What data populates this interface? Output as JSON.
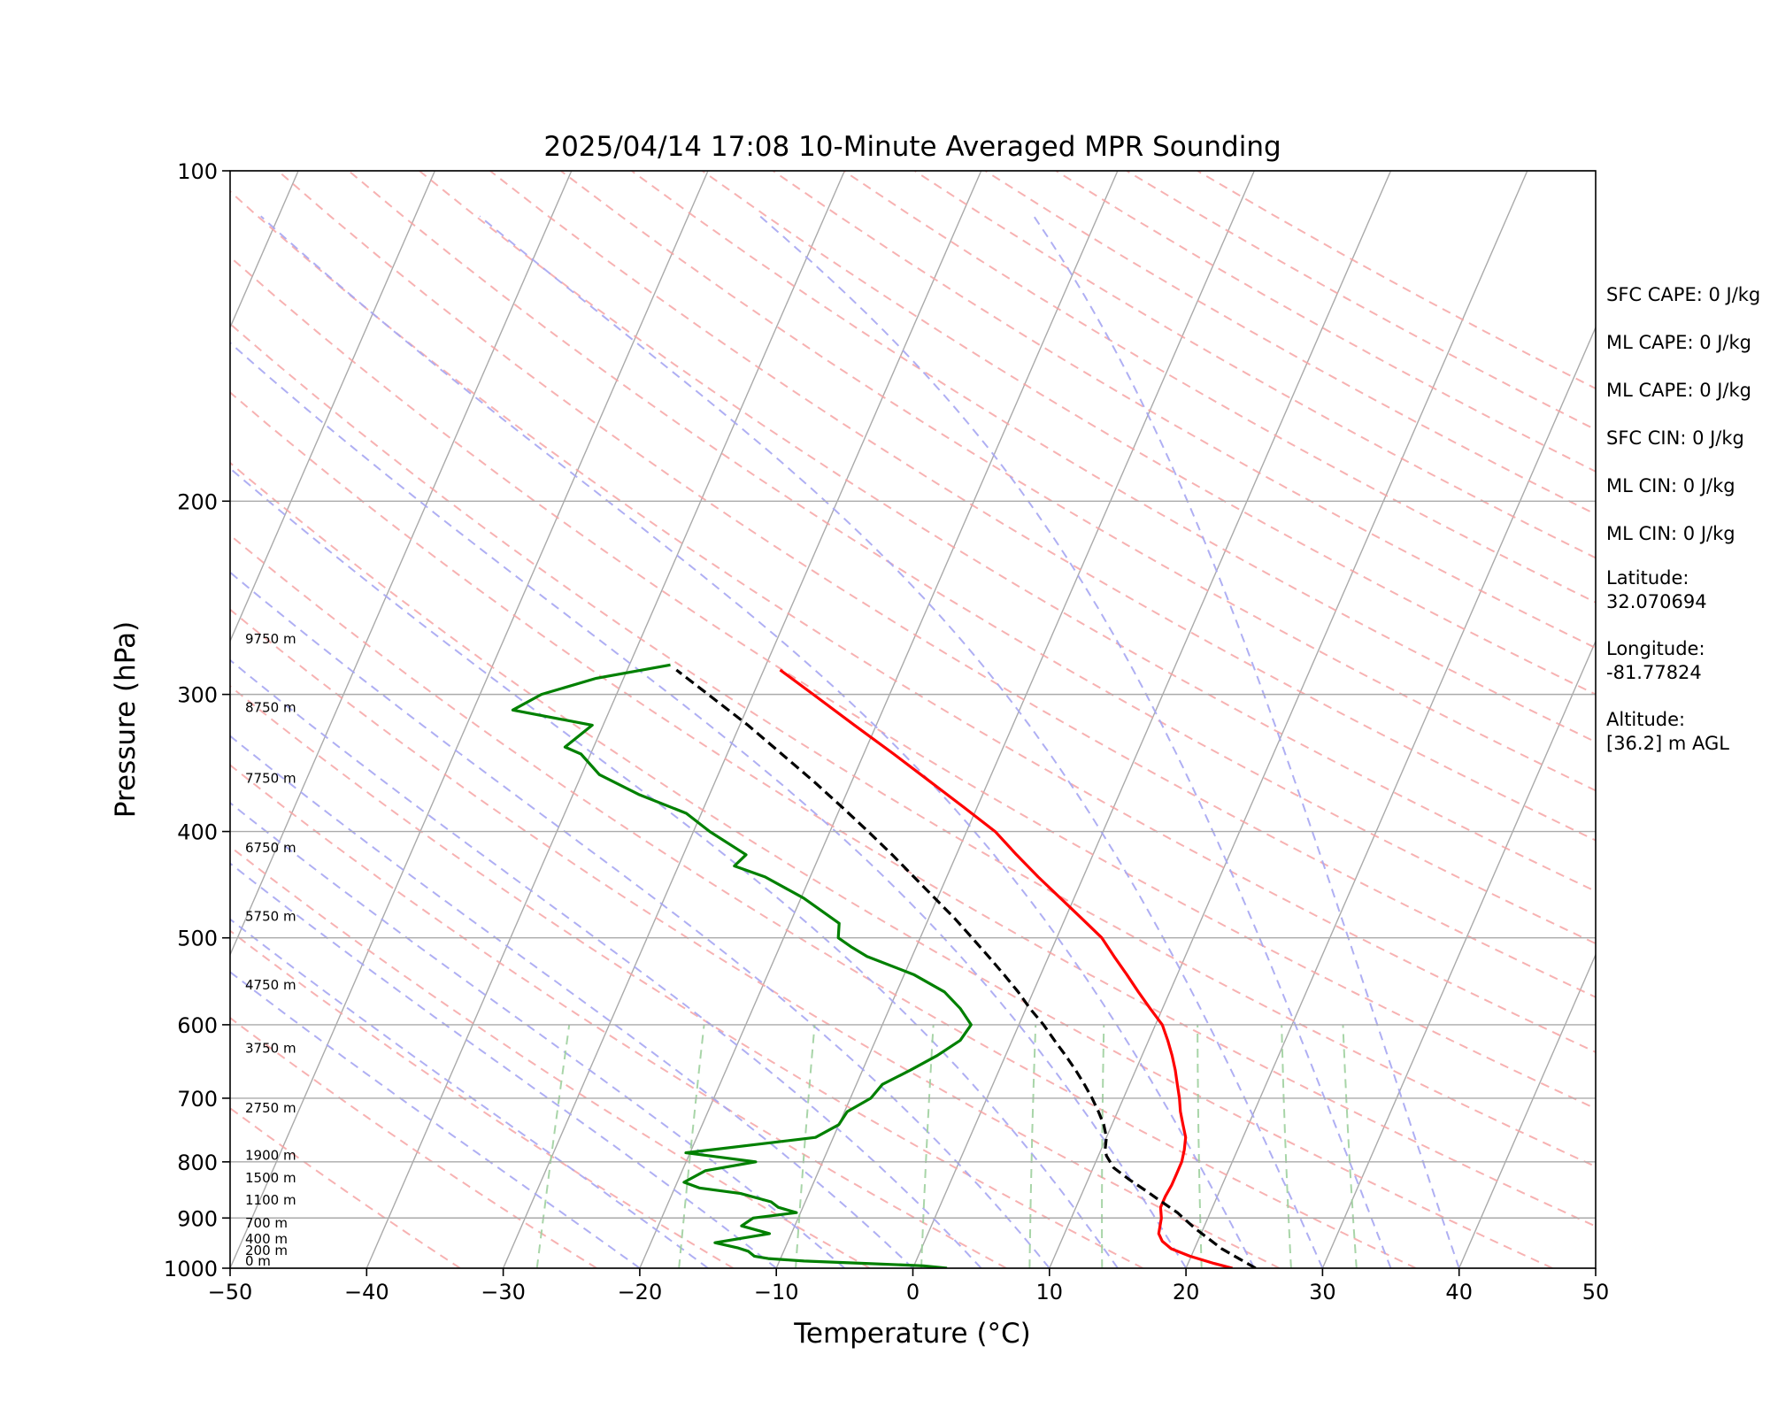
{
  "chart_data": {
    "type": "skew-t",
    "title": "2025/04/14 17:08 10-Minute Averaged MPR Sounding",
    "xlabel": "Temperature (°C)",
    "ylabel": "Pressure (hPa)",
    "xlim": [
      -50,
      50
    ],
    "ylim": [
      1000,
      100
    ],
    "y_scale": "log",
    "x_ticks": [
      -50,
      -40,
      -30,
      -20,
      -10,
      0,
      10,
      20,
      30,
      40,
      50
    ],
    "x_tick_labels": [
      "−50",
      "−40",
      "−30",
      "−20",
      "−10",
      "0",
      "10",
      "20",
      "30",
      "40",
      "50"
    ],
    "y_ticks": [
      1000,
      900,
      800,
      700,
      600,
      500,
      400,
      300,
      200,
      100
    ],
    "y_tick_labels": [
      "1000",
      "900",
      "800",
      "700",
      "600",
      "500",
      "400",
      "300",
      "200",
      "100"
    ],
    "grid": true,
    "background_lines": {
      "isotherms": "gray",
      "dry_adiabats": "light red dashed",
      "moist_adiabats": "light blue dashed",
      "mixing_ratio_lines": "light green dashed"
    },
    "colors": {
      "temperature": "#ff0000",
      "dewpoint": "#008000",
      "parcel": "#000000",
      "isotherm": "#aaaaaa",
      "dry_adiabat": "#f6a4a4",
      "moist_adiabat": "#a6a6f2",
      "mixing_ratio": "#9fd09f"
    },
    "series": [
      {
        "key": "temperature",
        "points": [
          [
            1000,
            23.4
          ],
          [
            990,
            21.9
          ],
          [
            975,
            19.9
          ],
          [
            960,
            18.3
          ],
          [
            945,
            17.4
          ],
          [
            930,
            16.9
          ],
          [
            900,
            16.6
          ],
          [
            880,
            16.2
          ],
          [
            860,
            16.2
          ],
          [
            840,
            16.3
          ],
          [
            820,
            16.3
          ],
          [
            800,
            16.3
          ],
          [
            780,
            16.1
          ],
          [
            760,
            15.8
          ],
          [
            740,
            15.2
          ],
          [
            720,
            14.6
          ],
          [
            700,
            14.1
          ],
          [
            680,
            13.5
          ],
          [
            660,
            12.9
          ],
          [
            640,
            12.2
          ],
          [
            620,
            11.4
          ],
          [
            600,
            10.5
          ],
          [
            580,
            9.1
          ],
          [
            560,
            7.7
          ],
          [
            540,
            6.3
          ],
          [
            520,
            4.8
          ],
          [
            500,
            3.3
          ],
          [
            480,
            1.2
          ],
          [
            460,
            -1.0
          ],
          [
            440,
            -3.3
          ],
          [
            420,
            -5.6
          ],
          [
            400,
            -7.9
          ],
          [
            380,
            -11.0
          ],
          [
            360,
            -14.3
          ],
          [
            340,
            -17.8
          ],
          [
            320,
            -21.6
          ],
          [
            300,
            -25.6
          ],
          [
            285,
            -28.8
          ]
        ]
      },
      {
        "key": "dewpoint",
        "points": [
          [
            1000,
            2.5
          ],
          [
            995,
            0.7
          ],
          [
            990,
            -3.6
          ],
          [
            985,
            -8.2
          ],
          [
            980,
            -10.9
          ],
          [
            975,
            -12.0
          ],
          [
            965,
            -12.6
          ],
          [
            958,
            -13.5
          ],
          [
            948,
            -15.3
          ],
          [
            930,
            -11.6
          ],
          [
            915,
            -13.9
          ],
          [
            900,
            -13.3
          ],
          [
            890,
            -10.3
          ],
          [
            880,
            -11.8
          ],
          [
            870,
            -12.5
          ],
          [
            855,
            -15.0
          ],
          [
            845,
            -18.2
          ],
          [
            835,
            -19.5
          ],
          [
            815,
            -18.3
          ],
          [
            800,
            -14.9
          ],
          [
            785,
            -20.3
          ],
          [
            760,
            -11.3
          ],
          [
            740,
            -10.0
          ],
          [
            720,
            -9.8
          ],
          [
            700,
            -8.5
          ],
          [
            680,
            -8.1
          ],
          [
            660,
            -6.5
          ],
          [
            640,
            -5.0
          ],
          [
            620,
            -3.8
          ],
          [
            600,
            -3.5
          ],
          [
            580,
            -4.8
          ],
          [
            560,
            -6.5
          ],
          [
            540,
            -9.3
          ],
          [
            520,
            -13.3
          ],
          [
            510,
            -14.7
          ],
          [
            500,
            -16.0
          ],
          [
            485,
            -16.4
          ],
          [
            460,
            -19.8
          ],
          [
            440,
            -23.3
          ],
          [
            430,
            -25.9
          ],
          [
            420,
            -25.4
          ],
          [
            400,
            -28.8
          ],
          [
            385,
            -31.1
          ],
          [
            370,
            -35.2
          ],
          [
            355,
            -38.7
          ],
          [
            340,
            -40.7
          ],
          [
            335,
            -42.1
          ],
          [
            320,
            -40.8
          ],
          [
            310,
            -47.1
          ],
          [
            300,
            -45.5
          ],
          [
            290,
            -42.0
          ],
          [
            282,
            -37.0
          ]
        ]
      },
      {
        "key": "parcel",
        "points": [
          [
            1000,
            25.1
          ],
          [
            960,
            22.0
          ],
          [
            920,
            19.4
          ],
          [
            890,
            17.6
          ],
          [
            870,
            16.1
          ],
          [
            850,
            14.6
          ],
          [
            830,
            13.0
          ],
          [
            810,
            11.5
          ],
          [
            790,
            10.6
          ],
          [
            780,
            10.3
          ],
          [
            760,
            10.0
          ],
          [
            740,
            9.4
          ],
          [
            720,
            8.6
          ],
          [
            700,
            7.7
          ],
          [
            680,
            6.7
          ],
          [
            660,
            5.6
          ],
          [
            640,
            4.4
          ],
          [
            620,
            3.1
          ],
          [
            600,
            1.8
          ],
          [
            580,
            0.3
          ],
          [
            560,
            -1.1
          ],
          [
            540,
            -2.7
          ],
          [
            520,
            -4.4
          ],
          [
            500,
            -6.2
          ],
          [
            480,
            -8.1
          ],
          [
            460,
            -10.2
          ],
          [
            440,
            -12.4
          ],
          [
            420,
            -14.7
          ],
          [
            400,
            -17.2
          ],
          [
            380,
            -19.9
          ],
          [
            360,
            -22.8
          ],
          [
            340,
            -26.0
          ],
          [
            320,
            -29.4
          ],
          [
            300,
            -33.3
          ],
          [
            285,
            -36.4
          ]
        ]
      }
    ],
    "height_labels": [
      {
        "p": 1000,
        "text": "0 m"
      },
      {
        "p": 978,
        "text": "200 m"
      },
      {
        "p": 955,
        "text": "400 m"
      },
      {
        "p": 923,
        "text": "700 m"
      },
      {
        "p": 880,
        "text": "1100 m"
      },
      {
        "p": 840,
        "text": "1500 m"
      },
      {
        "p": 801,
        "text": "1900 m"
      },
      {
        "p": 725,
        "text": "2750 m"
      },
      {
        "p": 640,
        "text": "3750 m"
      },
      {
        "p": 560,
        "text": "4750 m"
      },
      {
        "p": 485,
        "text": "5750 m"
      },
      {
        "p": 420,
        "text": "6750 m"
      },
      {
        "p": 363,
        "text": "7750 m"
      },
      {
        "p": 313,
        "text": "8750 m"
      },
      {
        "p": 271,
        "text": "9750 m"
      }
    ]
  },
  "info": [
    "SFC CAPE: 0 J/kg",
    "ML CAPE: 0 J/kg",
    "ML CAPE: 0 J/kg",
    "SFC CIN: 0 J/kg",
    "ML CIN: 0 J/kg",
    "ML CIN: 0 J/kg",
    "Latitude:\n32.070694",
    "Longitude:\n-81.77824",
    "Altitude:\n[36.2] m AGL"
  ]
}
